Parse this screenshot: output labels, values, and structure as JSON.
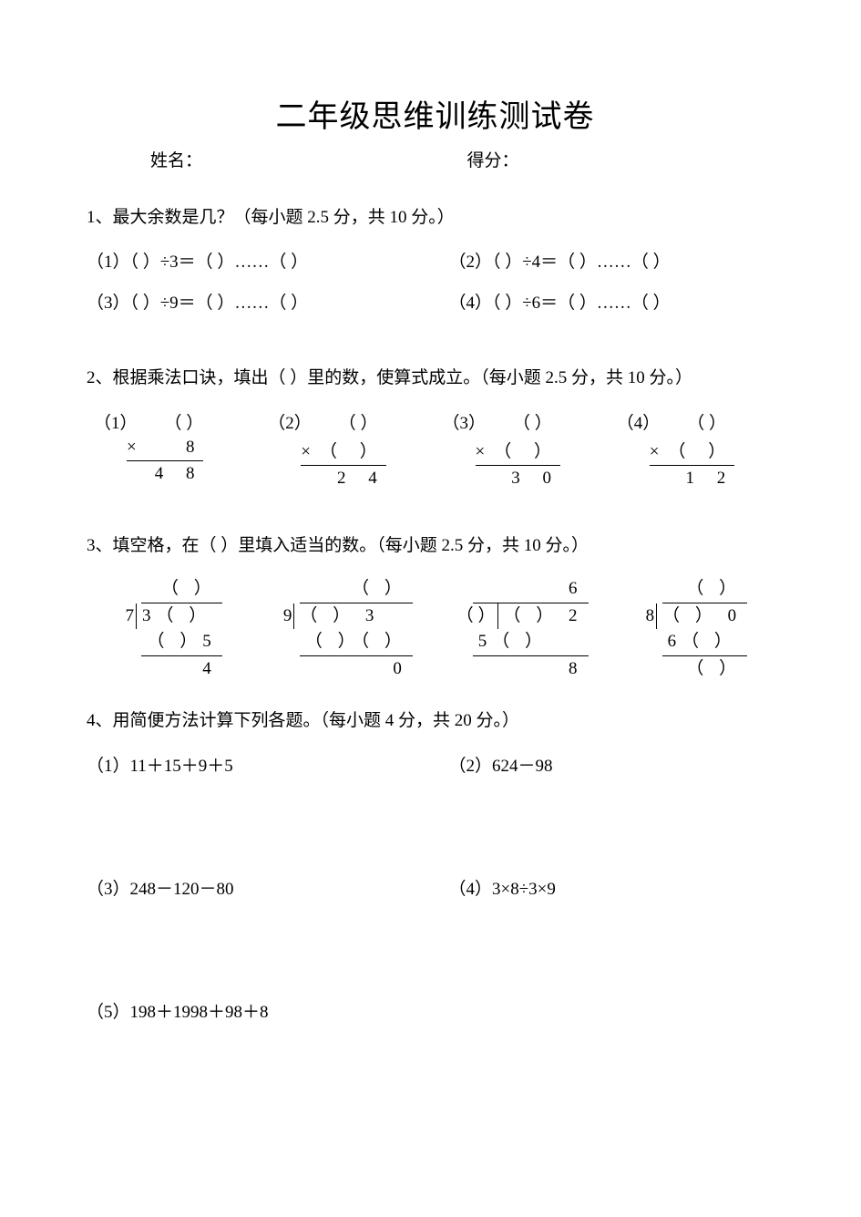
{
  "title": "二年级思维训练测试卷",
  "header": {
    "name_label": "姓名：",
    "score_label": "得分："
  },
  "q1": {
    "heading": "1、最大余数是几？（每小题 2.5 分，共 10 分。）",
    "items": [
      "（1）（ ）÷3＝（ ）……（ ）",
      "（2）（ ）÷4＝（ ）……（ ）",
      "（3）（ ）÷9＝（ ）……（ ）",
      "（4）（ ）÷6＝（ ）……（ ）"
    ]
  },
  "q2": {
    "heading": "2、根据乘法口诀，填出（  ）里的数，使算式成立。（每小题 2.5 分，共 10 分。）",
    "cols": [
      {
        "label": "（1）",
        "top": "（ ）",
        "mul": "×   8",
        "res": "4 8"
      },
      {
        "label": "（2）",
        "top": "（ ）",
        "mul": "×（ ）",
        "res": "2 4"
      },
      {
        "label": "（3）",
        "top": "（ ）",
        "mul": "×（ ）",
        "res": "3 0"
      },
      {
        "label": "（4）",
        "top": "（ ）",
        "mul": "×（ ）",
        "res": "1 2"
      }
    ]
  },
  "q3": {
    "heading": "3、填空格，在（  ）里填入适当的数。（每小题 2.5 分，共 10 分。）",
    "cols": [
      {
        "quotient": "（ ）",
        "divisor": "7",
        "dividend": "3（ ）",
        "sub": "（ ）5",
        "rem": "4",
        "rem_align": "right"
      },
      {
        "quotient": "（ ）",
        "divisor": "9",
        "dividend": "（ ） 3",
        "sub": "（ ）（ ）",
        "rem": "0",
        "rem_align": "right"
      },
      {
        "quotient": "6",
        "divisor": "（ ）",
        "dividend": "（ ） 2",
        "sub": "5（ ）",
        "rem": "8",
        "rem_align": "right"
      },
      {
        "quotient": "（ ）",
        "divisor": "8",
        "dividend": "（ ） 0",
        "sub": "6（ ）",
        "rem": "（ ）",
        "rem_align": "right"
      }
    ]
  },
  "q4": {
    "heading": "4、用简便方法计算下列各题。（每小题 4 分，共 20 分。）",
    "items": [
      "（1）11＋15＋9＋5",
      "（2）624－98",
      "（3）248－120－80",
      "（4）3×8÷3×9",
      "（5）198＋1998＋98＋8"
    ]
  }
}
